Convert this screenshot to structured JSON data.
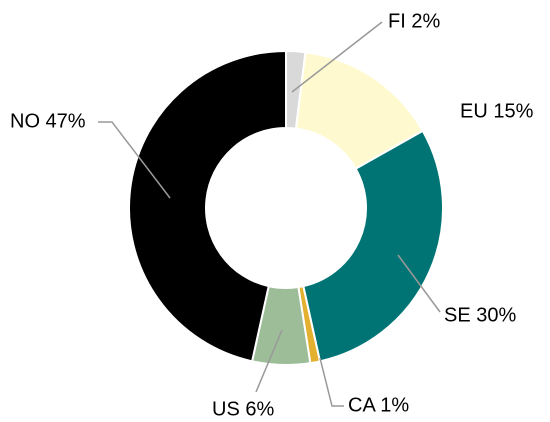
{
  "chart_data": {
    "type": "donut",
    "values": [
      2,
      15,
      30,
      1,
      6,
      47
    ],
    "value_labels": [
      "FI 2%",
      "EU 15%",
      "SE 30%",
      "CA 1%",
      "US 6%",
      "NO 47%"
    ],
    "colors": [
      "#d9d9d9",
      "#fff9cf",
      "#007474",
      "#e3b02f",
      "#9cbd98",
      "#000000"
    ]
  }
}
